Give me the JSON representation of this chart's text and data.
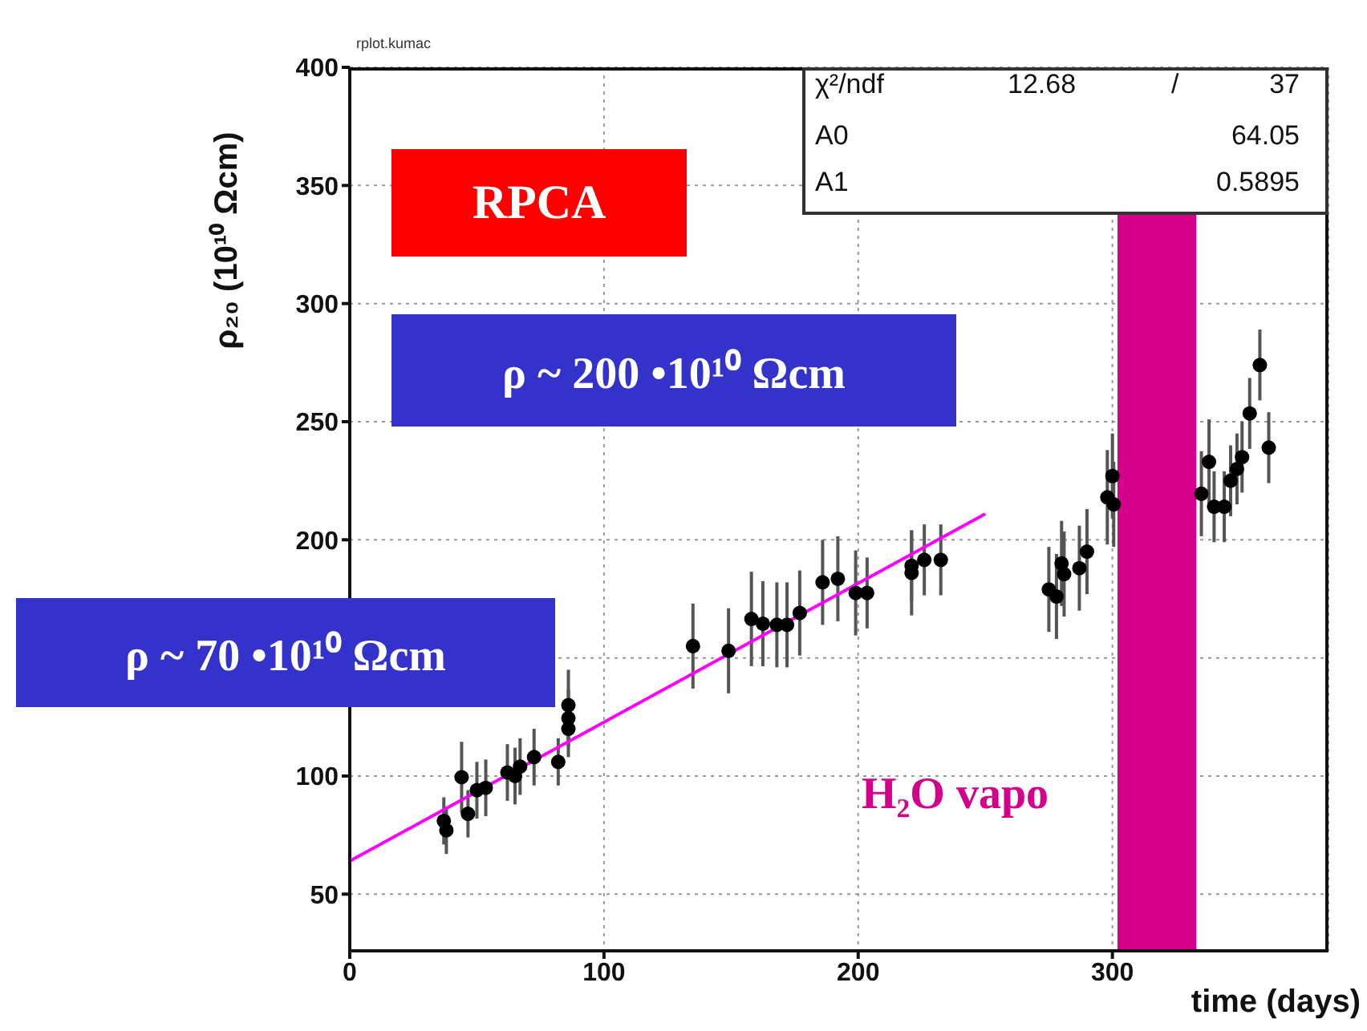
{
  "chart_data": {
    "type": "scatter",
    "xlabel": "time (days)",
    "ylabel": "ρ₂₀ (10¹⁰ Ωcm)",
    "xlim": [
      0,
      385
    ],
    "ylim": [
      26,
      400
    ],
    "xticks": [
      0,
      100,
      200,
      300
    ],
    "yticks": [
      50,
      100,
      {
        "value": 150,
        "label": null
      },
      200,
      250,
      300,
      350,
      400
    ],
    "grid": true,
    "legend": false,
    "bands": [
      {
        "axis": "x",
        "from": 302,
        "to": 333,
        "color": "#d4008c"
      }
    ],
    "series": [
      {
        "color": "#000000",
        "marker": "circle",
        "x": [
          37,
          38,
          44,
          46.5,
          50,
          53.5,
          62,
          65,
          67,
          72.5,
          82,
          86,
          86,
          86,
          135,
          149,
          158,
          162.5,
          168,
          172,
          177,
          186,
          192,
          199,
          203.5,
          221,
          221,
          226,
          232.5,
          275,
          278,
          280,
          281,
          287,
          290,
          298,
          300,
          300.5,
          335,
          338,
          340,
          344,
          346.5,
          349,
          351,
          354,
          358,
          361.5
        ],
        "values": [
          81,
          77,
          99.5,
          84,
          94,
          95,
          101.5,
          100,
          104,
          108,
          106,
          130,
          124.5,
          120,
          155,
          153,
          166.5,
          164.5,
          164,
          164,
          169,
          182,
          183.5,
          177.5,
          177.5,
          186,
          189,
          191.5,
          191.5,
          179,
          176,
          190,
          185.5,
          188,
          195,
          218,
          227,
          215,
          219.5,
          233,
          214,
          214,
          225,
          230,
          235,
          253.5,
          274,
          239
        ],
        "errors": [
          10,
          10,
          15,
          10,
          12,
          12,
          12,
          12,
          12,
          12,
          10,
          15,
          12,
          12,
          18,
          18,
          20,
          18,
          18,
          18,
          18,
          18,
          18,
          18,
          15,
          18,
          15,
          15,
          15,
          18,
          18,
          18,
          18,
          18,
          18,
          20,
          18,
          18,
          18,
          18,
          15,
          15,
          15,
          15,
          15,
          15,
          15,
          15
        ]
      },
      {
        "type": "line",
        "color": "#ff00ff",
        "marker": "none",
        "x": [
          0,
          250
        ],
        "values": [
          64,
          211
        ]
      }
    ],
    "annotations": [
      "rplot.kumac",
      "RPCA",
      "ρ ~ 200 •10¹⁰ Ωcm",
      "ρ ~ 70 •10¹⁰ Ωcm",
      "H₂O vapo",
      "χ²/ndf",
      "12.68",
      "/",
      "37",
      "A0",
      "64.05",
      "A1",
      "0.5895"
    ]
  }
}
